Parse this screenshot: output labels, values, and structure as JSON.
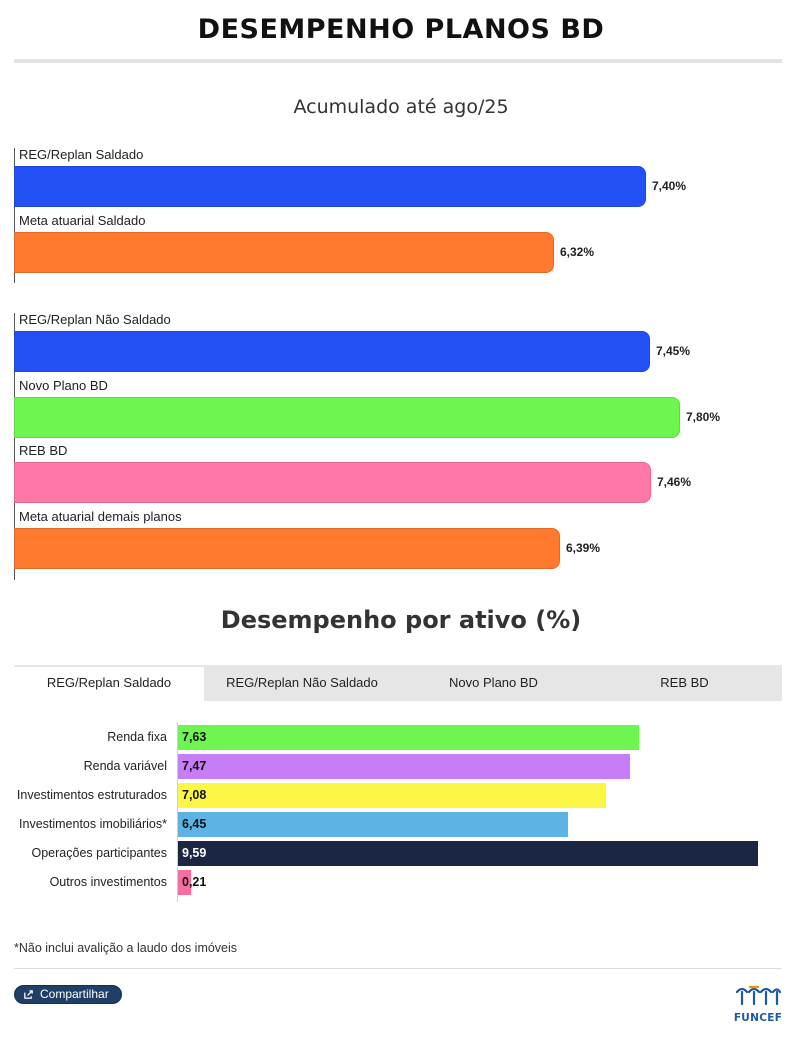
{
  "header": {
    "title": "DESEMPENHO PLANOS BD"
  },
  "accumulated": {
    "subtitle": "Acumulado até ago/25"
  },
  "assets": {
    "title": "Desempenho por ativo (%)",
    "tabs": [
      "REG/Replan Saldado",
      "REG/Replan Não Saldado",
      "Novo Plano BD",
      "REB BD"
    ],
    "active_tab": "REG/Replan Saldado",
    "footnote": "*Não inclui avalição a laudo dos imóveis"
  },
  "footer": {
    "share_label": "Compartilhar",
    "logo_text": "FUNCEF"
  },
  "colors": {
    "blue": "#2350f5",
    "orange": "#ff7a2e",
    "green": "#6ff550",
    "pink": "#ff78a8",
    "lime": "#6ff550",
    "purple": "#c77df7",
    "yellow": "#fcf746",
    "sky": "#5db4e4",
    "navy": "#1b2642",
    "rose": "#f76fa0",
    "brand": "#1d5aa6"
  },
  "chart_data": [
    {
      "type": "bar",
      "orientation": "horizontal",
      "title": "Acumulado até ago/25",
      "unit": "%",
      "groups": [
        {
          "categories": [
            "REG/Replan Saldado",
            "Meta atuarial Saldado"
          ],
          "values": [
            7.4,
            6.32
          ],
          "labels": [
            "7,40%",
            "6,32%"
          ],
          "colors": [
            "#2350f5",
            "#ff7a2e"
          ]
        },
        {
          "categories": [
            "REG/Replan Não Saldado",
            "Novo Plano BD",
            "REB BD",
            "Meta atuarial demais planos"
          ],
          "values": [
            7.45,
            7.8,
            7.46,
            6.39
          ],
          "labels": [
            "7,45%",
            "7,80%",
            "7,46%",
            "6,39%"
          ],
          "colors": [
            "#2350f5",
            "#6ff550",
            "#ff78a8",
            "#ff7a2e"
          ]
        }
      ]
    },
    {
      "type": "bar",
      "orientation": "horizontal",
      "title": "Desempenho por ativo (%)",
      "series_name": "REG/Replan Saldado",
      "categories": [
        "Renda fixa",
        "Renda variável",
        "Investimentos estruturados",
        "Investimentos imobiliários*",
        "Operações participantes",
        "Outros investimentos"
      ],
      "values": [
        7.63,
        7.47,
        7.08,
        6.45,
        9.59,
        0.21
      ],
      "labels": [
        "7,63",
        "7,47",
        "7,08",
        "6,45",
        "9,59",
        "0,21"
      ],
      "colors": [
        "#6ff550",
        "#c77df7",
        "#fcf746",
        "#5db4e4",
        "#1b2642",
        "#f76fa0"
      ],
      "label_colors": [
        "#111111",
        "#111111",
        "#111111",
        "#111111",
        "#ffffff",
        "#111111"
      ]
    }
  ]
}
